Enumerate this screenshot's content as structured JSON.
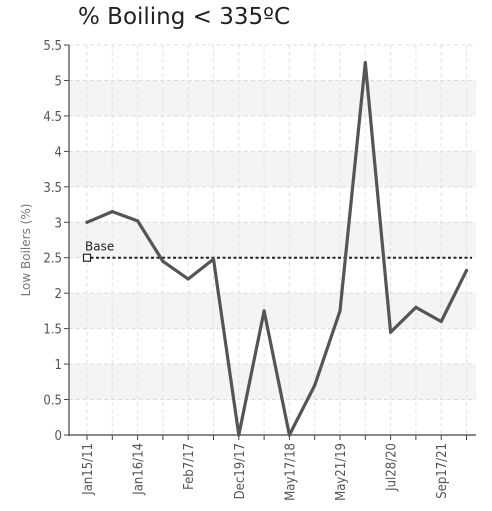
{
  "chart_data": {
    "type": "line",
    "title": "% Boiling < 335ºC",
    "xlabel": "",
    "ylabel": "Low Boilers (%)",
    "ylim": [
      0,
      5.5
    ],
    "yticks": [
      "0",
      "0.5",
      "1",
      "1.5",
      "2",
      "2.5",
      "3",
      "3.5",
      "4",
      "4.5",
      "5",
      "5.5"
    ],
    "x_tick_labels": [
      "Jan15/11",
      "Jan16/14",
      "Feb7/17",
      "Dec19/17",
      "May17/18",
      "May21/19",
      "Jul28/20",
      "Sep17/21"
    ],
    "grid": true,
    "series": [
      {
        "values": [
          3.0,
          3.15,
          3.02,
          2.45,
          2.2,
          2.48,
          0.0,
          1.75,
          0.0,
          0.7,
          1.75,
          5.25,
          1.45,
          1.8,
          1.6,
          2.32
        ],
        "color": "#555555"
      }
    ],
    "reference_line": {
      "label": "Base",
      "value": 2.5
    }
  }
}
